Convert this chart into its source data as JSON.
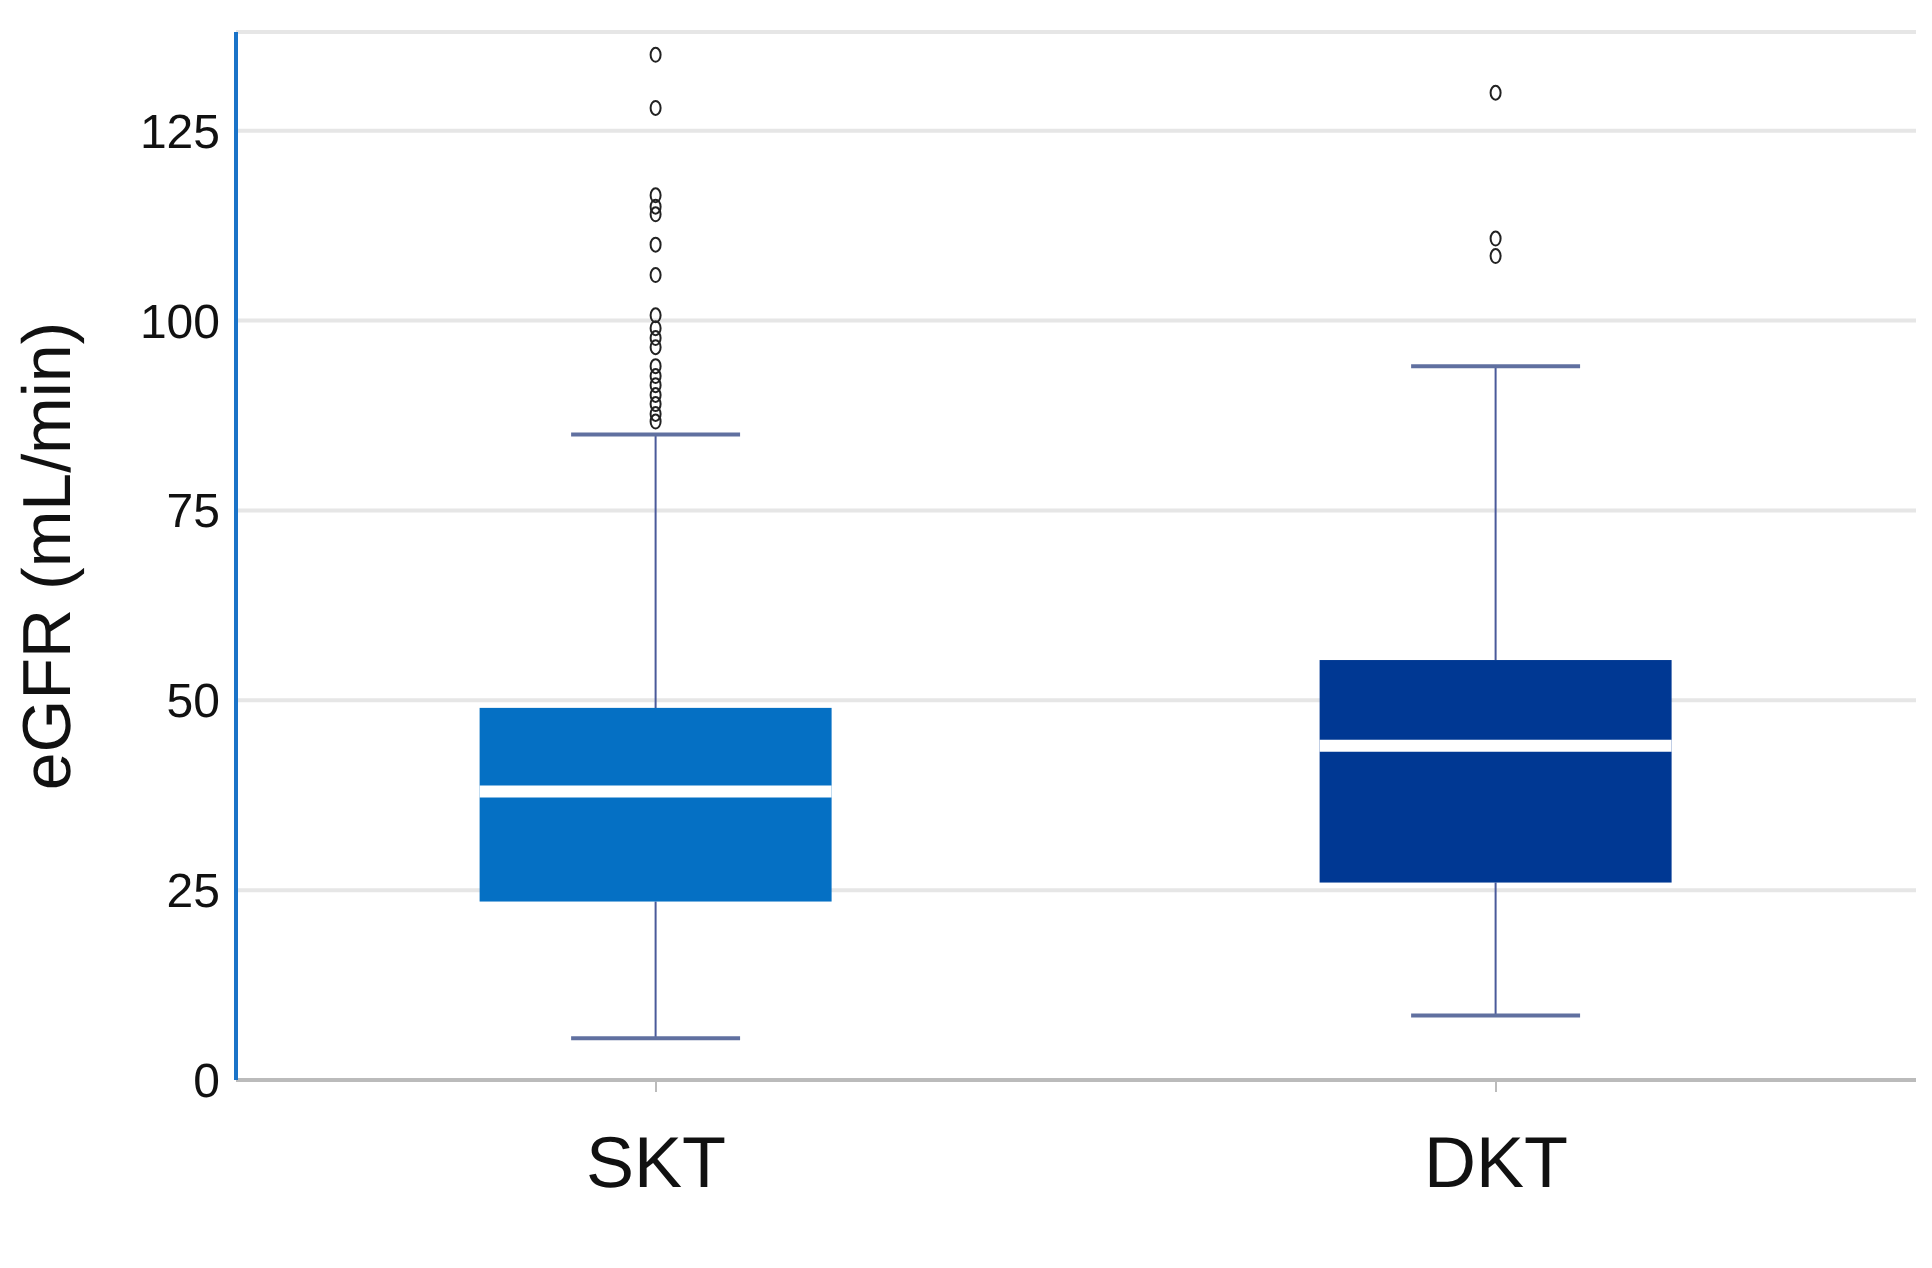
{
  "chart_data": {
    "type": "box",
    "ylabel": "eGFR (mL/min)",
    "categories": [
      "SKT",
      "DKT"
    ],
    "ylim": [
      0,
      138
    ],
    "yticks": [
      0,
      25,
      50,
      75,
      100,
      125
    ],
    "grid": "y",
    "colors": [
      "#0570c4",
      "#003893"
    ],
    "boxes": [
      {
        "low": 5.5,
        "q1": 23.5,
        "median": 38,
        "q3": 49,
        "high": 85,
        "outliers": [
          86.7,
          87.7,
          89,
          90.2,
          91.5,
          92.7,
          94,
          96.5,
          97.7,
          99,
          100.7,
          106,
          110,
          114,
          115,
          116.5,
          128,
          135
        ]
      },
      {
        "low": 8.5,
        "q1": 26,
        "median": 44,
        "q3": 55.3,
        "high": 94,
        "outliers": [
          108.5,
          110.8,
          130
        ]
      }
    ]
  }
}
